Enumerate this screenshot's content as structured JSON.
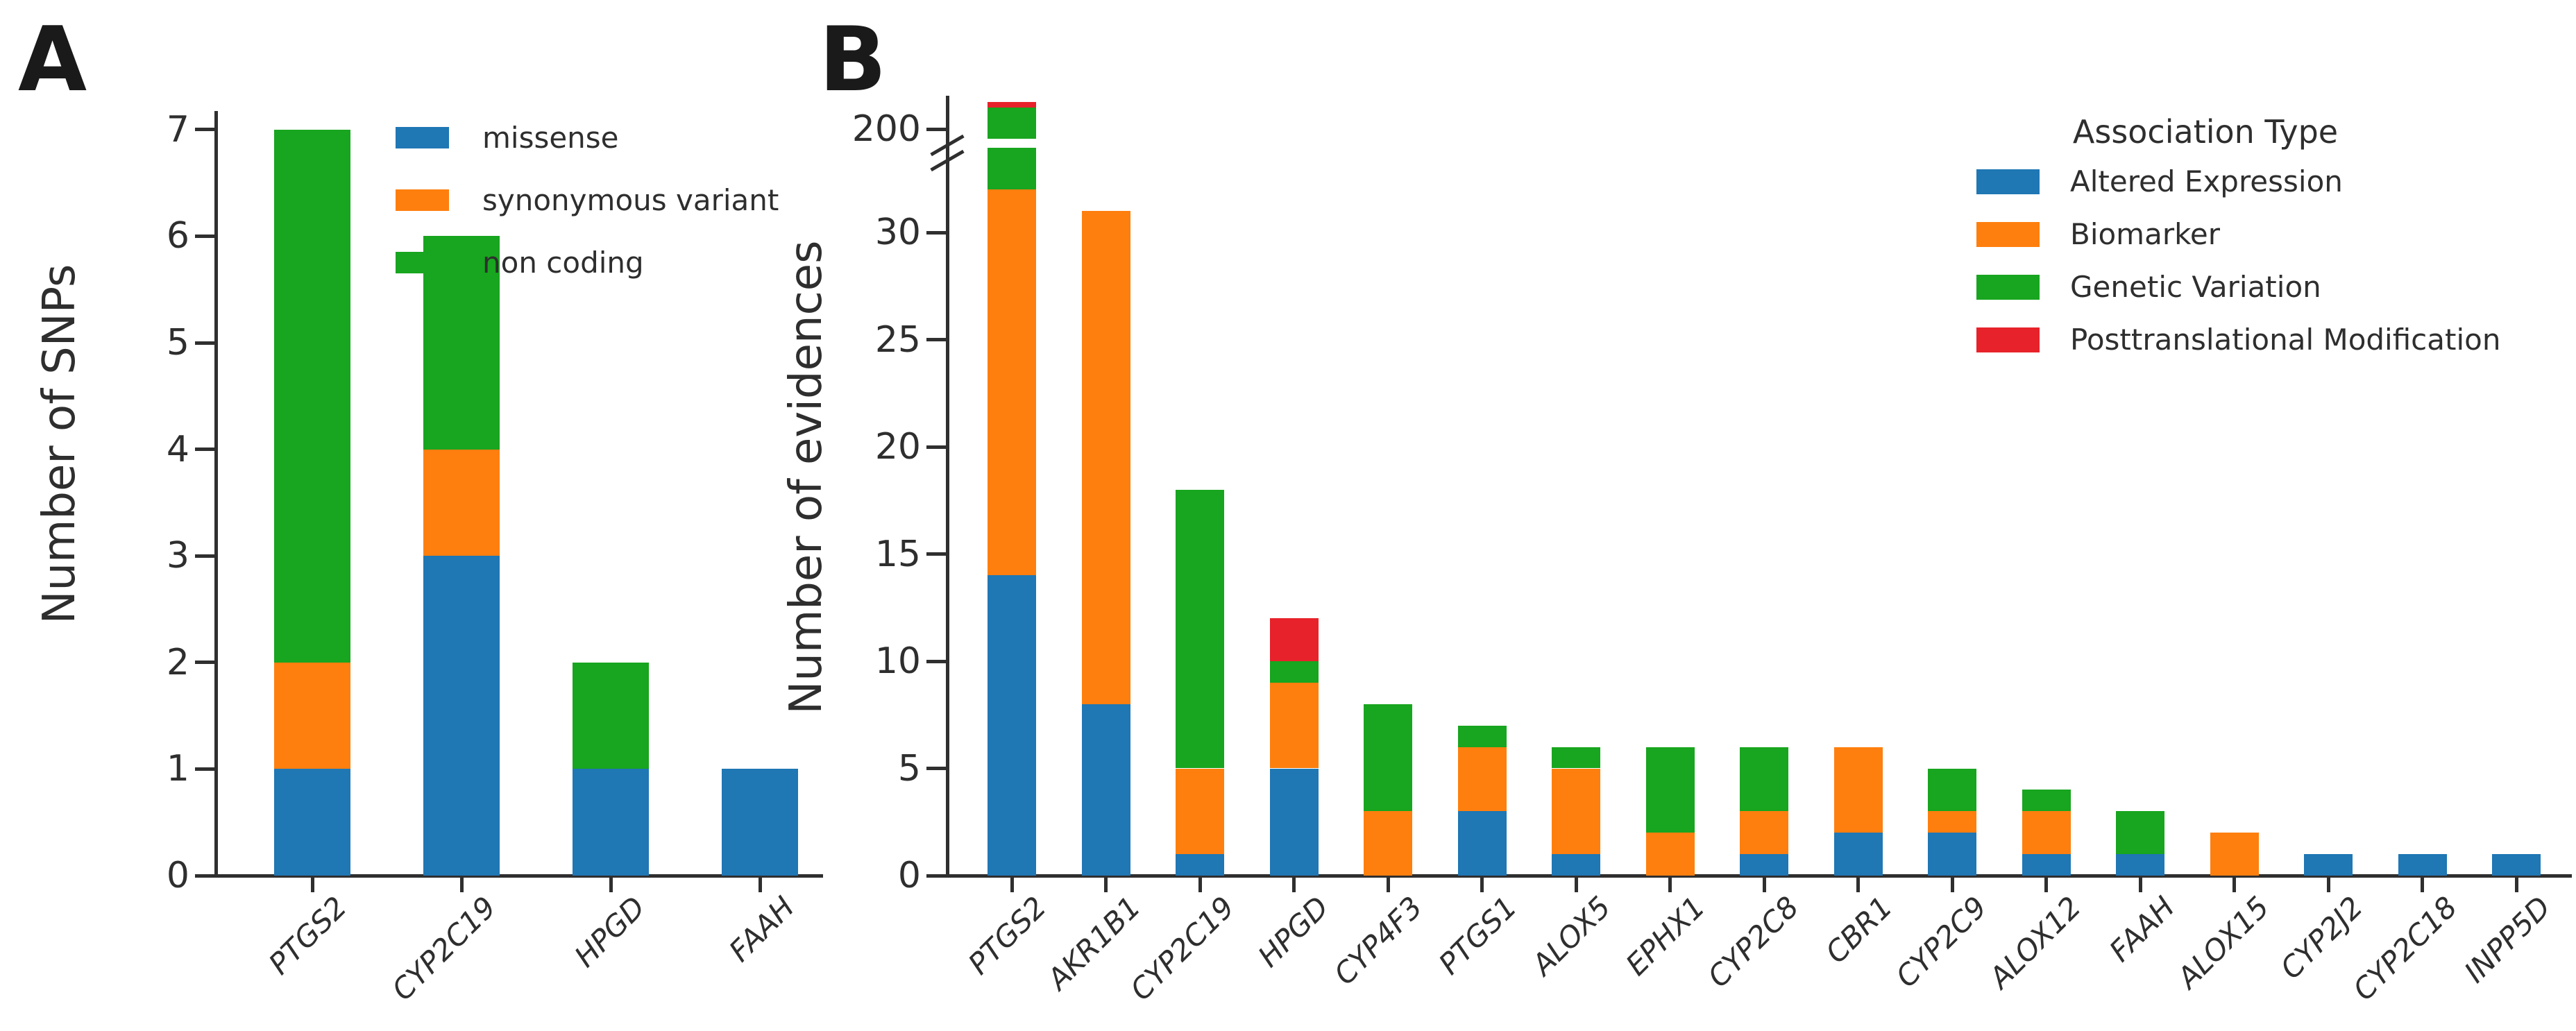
{
  "figure": {
    "panels": [
      {
        "letter": "A"
      },
      {
        "letter": "B"
      }
    ]
  },
  "chart_data": [
    {
      "id": "A",
      "type": "bar",
      "stacked": true,
      "title": "",
      "xlabel": "",
      "ylabel": "Number of SNPs",
      "categories": [
        "PTGS2",
        "CYP2C19",
        "HPGD",
        "FAAH"
      ],
      "series": [
        {
          "name": "missense",
          "color": "#1f77b4",
          "values": [
            1,
            3,
            1,
            1
          ]
        },
        {
          "name": "synonymous variant",
          "color": "#ff7f0e",
          "values": [
            1,
            1,
            0,
            0
          ]
        },
        {
          "name": "non coding",
          "color": "#18a51f",
          "values": [
            5,
            2,
            1,
            0
          ]
        }
      ],
      "totals": [
        7,
        6,
        2,
        1
      ],
      "ylim": [
        0,
        7.2
      ],
      "yticks": [
        0,
        1,
        2,
        3,
        4,
        5,
        6,
        7
      ],
      "grid": false,
      "legend_position": "upper right"
    },
    {
      "id": "B",
      "type": "bar",
      "stacked": true,
      "title": "",
      "xlabel": "",
      "ylabel": "Number of evidences",
      "legend_title": "Association Type",
      "categories": [
        "PTGS2",
        "AKR1B1",
        "CYP2C19",
        "HPGD",
        "CYP4F3",
        "PTGS1",
        "ALOX5",
        "EPHX1",
        "CYP2C8",
        "CBR1",
        "CYP2C9",
        "ALOX12",
        "FAAH",
        "ALOX15",
        "CYP2J2",
        "CYP2C18",
        "INPP5D"
      ],
      "series": [
        {
          "name": "Altered Expression",
          "color": "#1f77b4",
          "values": [
            14,
            8,
            1,
            5,
            0,
            3,
            1,
            0,
            1,
            2,
            2,
            1,
            1,
            0,
            1,
            1,
            1
          ]
        },
        {
          "name": "Biomarker",
          "color": "#ff7f0e",
          "values": [
            18,
            23,
            4,
            4,
            3,
            3,
            4,
            2,
            2,
            4,
            1,
            2,
            0,
            2,
            0,
            0,
            0
          ]
        },
        {
          "name": "Genetic Variation",
          "color": "#18a51f",
          "values": [
            176,
            0,
            13,
            1,
            5,
            1,
            1,
            4,
            3,
            0,
            2,
            1,
            2,
            0,
            0,
            0,
            0
          ]
        },
        {
          "name": "Posttranslational Modification",
          "color": "#e8222a",
          "values": [
            3,
            0,
            0,
            2,
            0,
            0,
            0,
            0,
            0,
            0,
            0,
            0,
            0,
            0,
            0,
            0,
            0
          ]
        }
      ],
      "totals": [
        211,
        31,
        18,
        12,
        8,
        7,
        6,
        6,
        6,
        6,
        5,
        4,
        3,
        2,
        1,
        1,
        1
      ],
      "yticks": [
        0,
        5,
        10,
        15,
        20,
        25,
        30,
        200
      ],
      "axis_break": {
        "between": [
          33,
          200
        ],
        "note": "broken y-axis; PTGS2 bar crosses the break"
      },
      "grid": false,
      "legend_position": "upper right"
    }
  ]
}
